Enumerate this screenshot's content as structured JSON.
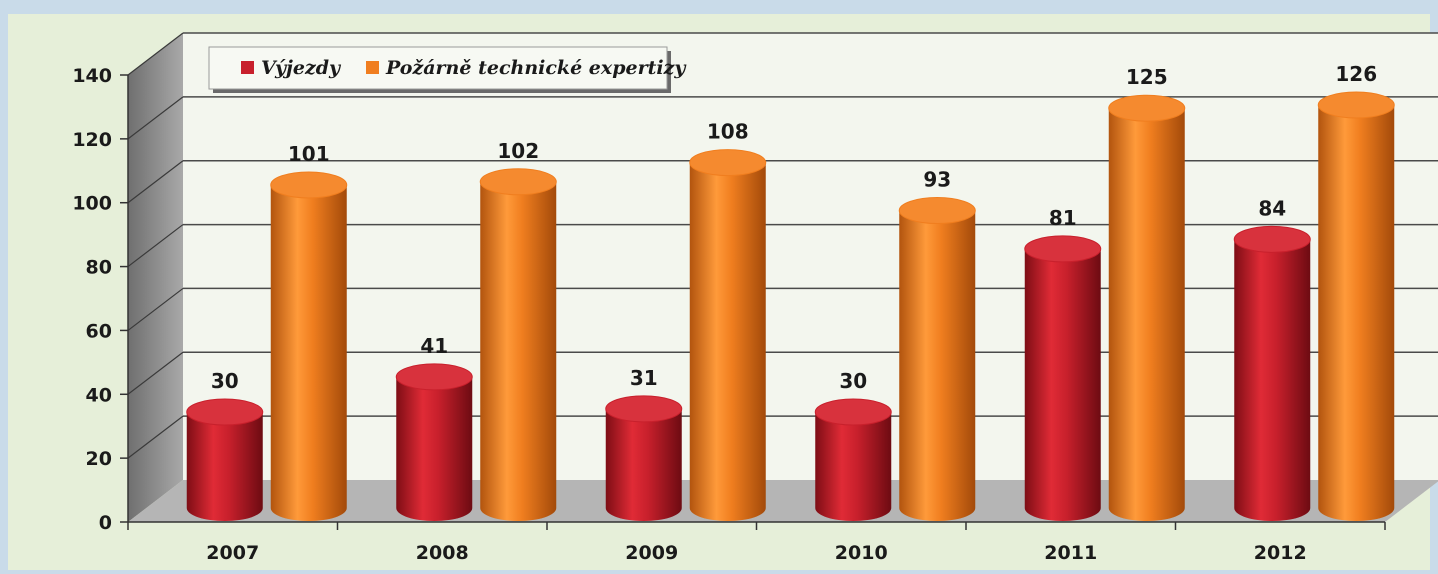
{
  "chart_data": {
    "type": "bar",
    "categories": [
      "2007",
      "2008",
      "2009",
      "2010",
      "2011",
      "2012"
    ],
    "series": [
      {
        "name": "Výjezdy",
        "values": [
          30,
          41,
          31,
          30,
          81,
          84
        ]
      },
      {
        "name": "Požárně technické expertizy",
        "values": [
          101,
          102,
          108,
          93,
          125,
          126
        ]
      }
    ],
    "ylim": [
      0,
      140
    ],
    "yticks": [
      0,
      20,
      40,
      60,
      80,
      100,
      120,
      140
    ],
    "grid": true,
    "legend_position": "top-left",
    "style": "3d-cylinder"
  },
  "colors": {
    "background": "#c9dbe9",
    "plot_background": "#e6efd9",
    "series_1": "#c8202c",
    "series_2": "#f07e1f",
    "floor": "#b5b5b5",
    "left_wall": "#8e8e8e"
  }
}
